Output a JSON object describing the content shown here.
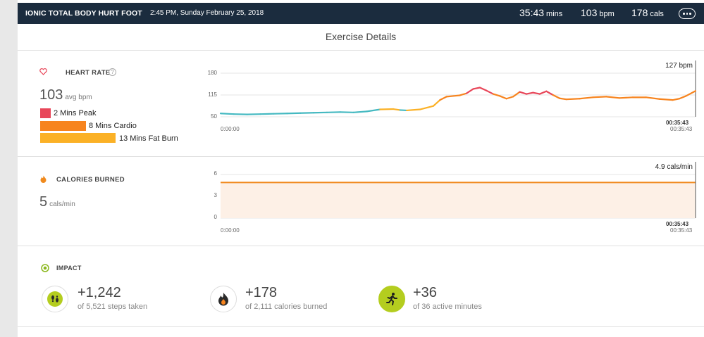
{
  "header": {
    "title": "IONIC TOTAL BODY HURT FOOT",
    "datetime": "2:45 PM, Sunday February 25, 2018",
    "duration": "35:43",
    "duration_unit": "mins",
    "bpm": "103",
    "bpm_unit": "bpm",
    "cals": "178",
    "cals_unit": "cals",
    "more_icon": "more-options-icon"
  },
  "page_title": "Exercise Details",
  "heart_rate": {
    "label": "HEART RATE",
    "icon": "heart-icon",
    "info_icon": "info-icon",
    "avg": "103",
    "avg_unit": "avg bpm",
    "zones": [
      {
        "label": "2 Mins Peak",
        "minutes": 2,
        "color": "#e84659"
      },
      {
        "label": "8 Mins Cardio",
        "minutes": 8,
        "color": "#f7841e"
      },
      {
        "label": "13 Mins Fat Burn",
        "minutes": 13,
        "color": "#fbb126"
      }
    ],
    "chart": {
      "y_ticks": [
        "180",
        "115",
        "50"
      ],
      "time_start": "0:00:00",
      "time_end": "00:35:43",
      "time_end_sub": "00:35:43",
      "current": "127 bpm"
    }
  },
  "calories": {
    "label": "CALORIES BURNED",
    "icon": "flame-icon",
    "value": "5",
    "unit": "cals/min",
    "chart": {
      "y_ticks": [
        "6",
        "3",
        "0"
      ],
      "time_start": "0:00:00",
      "time_end": "00:35:43",
      "time_end_sub": "00:35:43",
      "current": "4.9 cals/min"
    }
  },
  "impact": {
    "label": "IMPACT",
    "icon": "target-icon",
    "items": [
      {
        "icon": "footsteps-icon",
        "value": "+1,242",
        "sub": "of 5,521 steps taken"
      },
      {
        "icon": "flame-icon",
        "value": "+178",
        "sub": "of 2,111 calories burned"
      },
      {
        "icon": "running-icon",
        "value": "+36",
        "sub": "of 36 active minutes"
      }
    ]
  },
  "colors": {
    "header_bg": "#1b2c3e",
    "zone_normal": "#45b9c1",
    "zone_fat_burn": "#fbb126",
    "zone_cardio": "#f7841e",
    "zone_peak": "#e84659",
    "calorie_line": "#f08a1e",
    "active_green": "#b4cd1f"
  },
  "chart_data": [
    {
      "type": "line",
      "title": "Heart Rate",
      "ylim": [
        50,
        180
      ],
      "y_ticks": [
        50,
        115,
        180
      ],
      "x_unit": "minutes",
      "xlim": [
        0,
        35.72
      ],
      "series": [
        {
          "x": [
            0,
            1,
            2,
            3,
            4,
            5,
            6,
            7,
            8,
            9,
            10,
            11,
            12,
            13,
            13.5,
            14,
            15,
            16,
            16.5,
            17,
            17.5,
            18,
            18.5,
            19,
            19.5,
            20,
            20.5,
            21,
            21.5,
            22,
            22.5,
            23,
            23.5,
            24,
            24.5,
            25,
            25.5,
            26,
            27,
            28,
            29,
            30,
            31,
            32,
            33,
            34,
            34.5,
            35,
            35.72
          ],
          "y": [
            60,
            58,
            57,
            58,
            59,
            60,
            61,
            62,
            63,
            64,
            63,
            66,
            72,
            73,
            70,
            69,
            72,
            82,
            100,
            110,
            112,
            114,
            120,
            133,
            137,
            128,
            118,
            112,
            104,
            110,
            124,
            118,
            122,
            118,
            126,
            115,
            105,
            102,
            104,
            108,
            110,
            106,
            108,
            108,
            103,
            100,
            104,
            112,
            127
          ]
        }
      ]
    },
    {
      "type": "area",
      "title": "Calories Burned",
      "ylim": [
        0,
        6
      ],
      "y_ticks": [
        0,
        3,
        6
      ],
      "x_unit": "minutes",
      "xlim": [
        0,
        35.72
      ],
      "series": [
        {
          "x": [
            0,
            35.72
          ],
          "y": [
            4.9,
            4.9
          ]
        }
      ]
    }
  ]
}
